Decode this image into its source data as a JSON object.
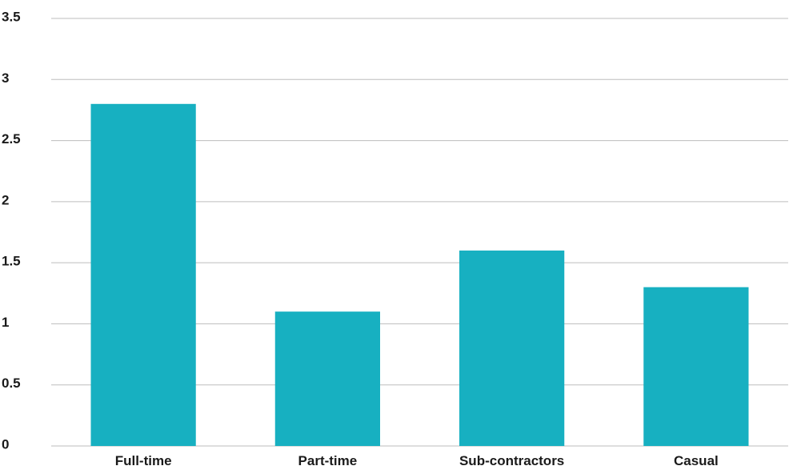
{
  "chart_data": {
    "type": "bar",
    "categories": [
      "Full-time",
      "Part-time",
      "Sub-contractors",
      "Casual"
    ],
    "values": [
      2.8,
      1.1,
      1.6,
      1.3
    ],
    "yticks": [
      "0",
      "0.5",
      "1",
      "1.5",
      "2",
      "2.5",
      "3",
      "3.5"
    ],
    "ylim": [
      0,
      3.5
    ],
    "grid": true,
    "bar_color": "#17b0c1",
    "title": "",
    "xlabel": "",
    "ylabel": ""
  }
}
